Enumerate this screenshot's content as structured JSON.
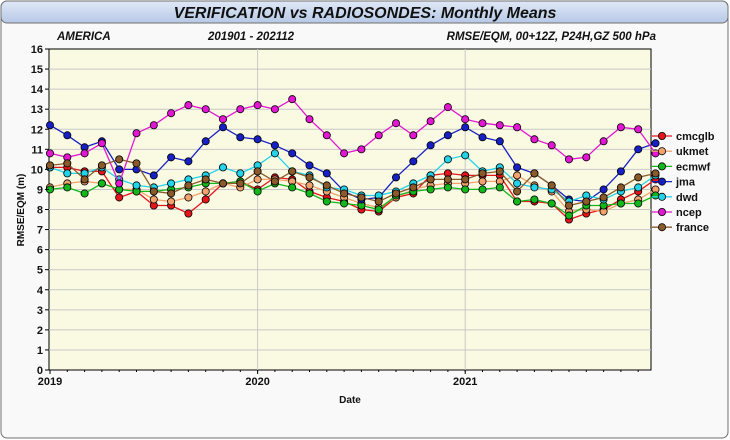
{
  "chart_data": {
    "type": "line",
    "title": "VERIFICATION vs RADIOSONDES: Monthly Means",
    "subtitle_left": "AMERICA",
    "subtitle_center": "201901 - 202112",
    "subtitle_right": "RMSE/EQM, 00+12Z, P24H,GZ 500 hPa",
    "xlabel": "Date",
    "ylabel": "RMSE/EQM (m)",
    "ylim": [
      0,
      16
    ],
    "yticks": [
      "0",
      "1",
      "2",
      "3",
      "4",
      "5",
      "6",
      "7",
      "8",
      "9",
      "10",
      "11",
      "12",
      "13",
      "14",
      "15",
      "16"
    ],
    "xticks": [
      {
        "label": "2019",
        "month": 0
      },
      {
        "label": "2020",
        "month": 12
      },
      {
        "label": "2021",
        "month": 24
      }
    ],
    "x_month_count": 36,
    "grid": true,
    "legend_position": "right",
    "series": [
      {
        "name": "cmcglb",
        "color": "#e8141b",
        "values": [
          10.1,
          10.1,
          9.9,
          9.9,
          8.6,
          8.9,
          8.2,
          8.2,
          7.8,
          8.5,
          9.3,
          9.4,
          9.0,
          9.6,
          9.5,
          8.9,
          8.6,
          8.4,
          8.0,
          7.9,
          8.6,
          8.8,
          9.7,
          9.8,
          9.7,
          9.7,
          9.7,
          8.4,
          8.4,
          8.3,
          7.5,
          7.8,
          8.0,
          8.5,
          8.9,
          9.5
        ]
      },
      {
        "name": "ukmet",
        "color": "#f1a26d",
        "values": [
          9.1,
          9.3,
          9.4,
          9.3,
          9.0,
          9.0,
          8.5,
          8.4,
          8.6,
          8.9,
          9.3,
          9.1,
          9.5,
          9.5,
          9.4,
          9.2,
          8.9,
          8.6,
          8.3,
          8.1,
          8.6,
          9.0,
          9.2,
          9.3,
          9.3,
          9.4,
          9.4,
          9.7,
          9.2,
          8.9,
          7.9,
          8.0,
          7.9,
          8.3,
          8.5,
          9.0
        ]
      },
      {
        "name": "ecmwf",
        "color": "#12b81b",
        "values": [
          9.0,
          9.1,
          8.8,
          9.3,
          9.0,
          8.9,
          8.9,
          9.0,
          9.1,
          9.3,
          9.3,
          9.4,
          8.9,
          9.3,
          9.1,
          8.8,
          8.4,
          8.3,
          8.2,
          8.0,
          8.7,
          8.9,
          9.0,
          9.1,
          9.0,
          9.0,
          9.1,
          8.4,
          8.5,
          8.3,
          7.7,
          8.2,
          8.2,
          8.3,
          8.3,
          8.7
        ]
      },
      {
        "name": "jma",
        "color": "#1620c4",
        "values": [
          12.2,
          11.7,
          11.1,
          11.4,
          10.0,
          10.0,
          9.7,
          10.6,
          10.4,
          11.4,
          12.1,
          11.6,
          11.5,
          11.2,
          10.8,
          10.2,
          9.8,
          8.9,
          8.5,
          8.6,
          9.6,
          10.4,
          11.2,
          11.7,
          12.1,
          11.6,
          11.4,
          10.1,
          9.8,
          9.2,
          8.5,
          8.4,
          9.0,
          9.9,
          11.0,
          11.3
        ]
      },
      {
        "name": "dwd",
        "color": "#22d4ea",
        "values": [
          10.1,
          9.8,
          9.8,
          10.1,
          9.5,
          9.2,
          9.1,
          9.3,
          9.5,
          9.7,
          10.1,
          9.8,
          10.2,
          10.8,
          9.9,
          9.7,
          9.1,
          9.0,
          8.7,
          8.7,
          8.9,
          9.3,
          9.7,
          10.5,
          10.7,
          9.9,
          10.1,
          9.3,
          9.1,
          9.0,
          8.4,
          8.7,
          8.5,
          8.9,
          9.1,
          9.7
        ]
      },
      {
        "name": "ncep",
        "color": "#e316d3",
        "values": [
          10.8,
          10.6,
          10.8,
          11.3,
          9.3,
          11.8,
          12.2,
          12.8,
          13.2,
          13.0,
          12.5,
          13.0,
          13.2,
          13.0,
          13.5,
          12.5,
          11.7,
          10.8,
          11.0,
          11.7,
          12.3,
          11.7,
          12.4,
          13.1,
          12.5,
          12.3,
          12.2,
          12.1,
          11.5,
          11.2,
          10.5,
          10.6,
          11.4,
          12.1,
          12.0,
          10.8
        ]
      },
      {
        "name": "france",
        "color": "#8b5a2b",
        "values": [
          10.2,
          10.3,
          9.5,
          10.2,
          10.5,
          10.3,
          8.9,
          8.8,
          9.2,
          9.5,
          9.3,
          9.3,
          9.9,
          9.4,
          9.9,
          9.6,
          9.2,
          8.8,
          8.6,
          8.4,
          8.8,
          9.1,
          9.5,
          9.5,
          9.5,
          9.8,
          9.9,
          8.9,
          9.8,
          9.2,
          8.2,
          8.4,
          8.6,
          9.1,
          9.6,
          9.8
        ]
      }
    ]
  }
}
